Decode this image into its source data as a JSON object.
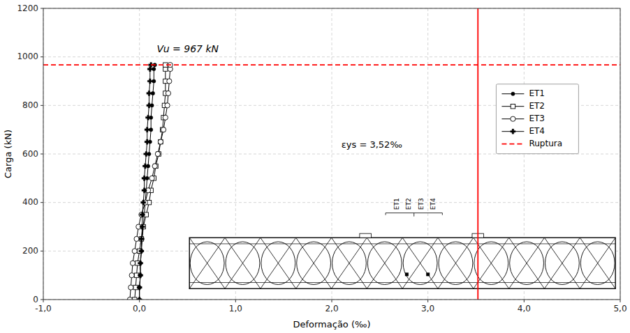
{
  "chart_data": {
    "type": "line",
    "x_label": "Deformação (‰)",
    "y_label": "Carga (kN)",
    "xlim": [
      -1.0,
      5.0
    ],
    "ylim": [
      0,
      1200
    ],
    "xticks": [
      {
        "value": -1.0,
        "label": "-1,0"
      },
      {
        "value": 0.0,
        "label": "0,0"
      },
      {
        "value": 1.0,
        "label": "1,0"
      },
      {
        "value": 2.0,
        "label": "2,0"
      },
      {
        "value": 3.0,
        "label": "3,0"
      },
      {
        "value": 4.0,
        "label": "4,0"
      },
      {
        "value": 5.0,
        "label": "5,0"
      }
    ],
    "yticks": [
      0,
      200,
      400,
      600,
      800,
      1000,
      1200
    ],
    "grid": true,
    "legend": "right",
    "series": [
      {
        "name": "ET1",
        "color": "#000000",
        "marker": "circle",
        "x": [
          0.0,
          0.0,
          0.01,
          0.01,
          0.02,
          0.03,
          0.04,
          0.05,
          0.06,
          0.07,
          0.08,
          0.09,
          0.1,
          0.11,
          0.12,
          0.12,
          0.13,
          0.14,
          0.15,
          0.15,
          0.16
        ],
        "values": [
          0,
          50,
          100,
          150,
          200,
          250,
          300,
          350,
          400,
          450,
          500,
          550,
          600,
          650,
          700,
          750,
          800,
          850,
          900,
          950,
          967
        ]
      },
      {
        "name": "ET2",
        "color": "#000000",
        "marker": "square-open",
        "x": [
          -0.05,
          -0.04,
          -0.03,
          -0.02,
          0.0,
          0.02,
          0.04,
          0.07,
          0.1,
          0.12,
          0.15,
          0.17,
          0.2,
          0.22,
          0.24,
          0.25,
          0.26,
          0.27,
          0.27,
          0.27,
          0.27
        ],
        "values": [
          0,
          50,
          100,
          150,
          200,
          250,
          300,
          350,
          400,
          450,
          500,
          550,
          600,
          650,
          700,
          750,
          800,
          850,
          900,
          950,
          967
        ]
      },
      {
        "name": "ET3",
        "color": "#000000",
        "marker": "circle-open",
        "x": [
          -0.1,
          -0.09,
          -0.08,
          -0.07,
          -0.05,
          -0.03,
          -0.01,
          0.02,
          0.06,
          0.09,
          0.13,
          0.16,
          0.19,
          0.22,
          0.25,
          0.27,
          0.29,
          0.3,
          0.31,
          0.32,
          0.32
        ],
        "values": [
          0,
          50,
          100,
          150,
          200,
          250,
          300,
          350,
          400,
          450,
          500,
          550,
          600,
          650,
          700,
          750,
          800,
          850,
          900,
          950,
          967
        ]
      },
      {
        "name": "ET4",
        "color": "#000000",
        "marker": "plus",
        "x": [
          0.0,
          0.0,
          0.01,
          0.01,
          0.02,
          0.02,
          0.03,
          0.03,
          0.04,
          0.05,
          0.05,
          0.06,
          0.07,
          0.08,
          0.08,
          0.09,
          0.1,
          0.1,
          0.11,
          0.11,
          0.12
        ],
        "values": [
          0,
          50,
          100,
          150,
          200,
          250,
          300,
          350,
          400,
          450,
          500,
          550,
          600,
          650,
          700,
          750,
          800,
          850,
          900,
          950,
          967
        ]
      },
      {
        "name": "Ruptura",
        "type": "hline",
        "color": "#ff0000",
        "line_style": "dashed",
        "values": [
          967
        ]
      }
    ],
    "vertical_line": {
      "x": 3.52,
      "color": "#ff0000",
      "line_style": "solid"
    },
    "annotations": [
      "Vu = 967 kN",
      "εys = 3,52‰"
    ],
    "sensor_labels": [
      "ET1",
      "ET2",
      "ET3",
      "ET4"
    ]
  }
}
